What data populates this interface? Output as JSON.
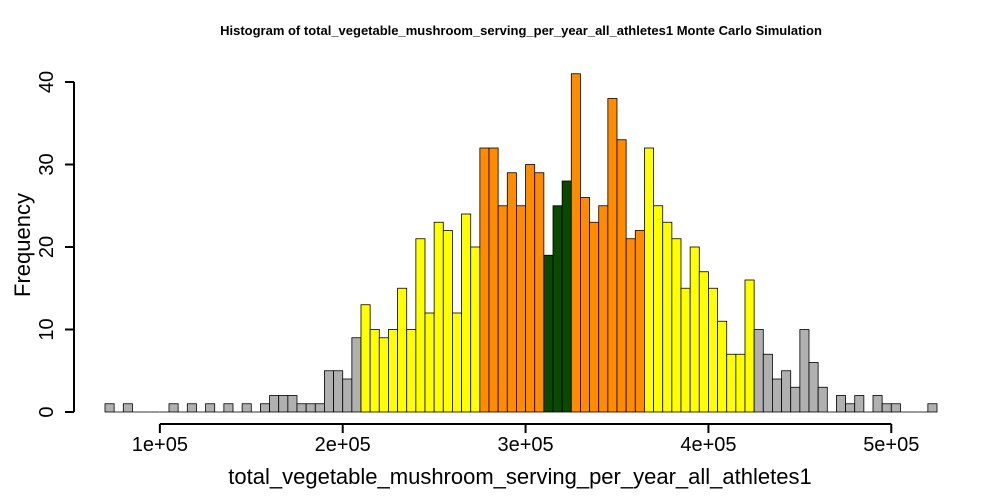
{
  "chart_data": {
    "type": "bar",
    "title": "Histogram of  total_vegetable_mushroom_serving_per_year_all_athletes1  Monte Carlo Simulation",
    "xlabel": "total_vegetable_mushroom_serving_per_year_all_athletes1",
    "ylabel": "Frequency",
    "xlim": [
      70000,
      525000
    ],
    "ylim": [
      0,
      40
    ],
    "bin_width": 5000,
    "x_ticks": [
      {
        "value": 100000,
        "label": "1e+05"
      },
      {
        "value": 200000,
        "label": "2e+05"
      },
      {
        "value": 300000,
        "label": "3e+05"
      },
      {
        "value": 400000,
        "label": "4e+05"
      },
      {
        "value": 500000,
        "label": "5e+05"
      }
    ],
    "y_ticks": [
      {
        "value": 0,
        "label": "0"
      },
      {
        "value": 10,
        "label": "10"
      },
      {
        "value": 20,
        "label": "20"
      },
      {
        "value": 30,
        "label": "30"
      },
      {
        "value": 40,
        "label": "40"
      }
    ],
    "colors": {
      "gray": "#b0b0b0",
      "yellow": "#ffff00",
      "orange": "#ff8c00",
      "green": "#0a4a00"
    },
    "bins": [
      {
        "x0": 70000,
        "x1": 75000,
        "count": 1,
        "color": "gray"
      },
      {
        "x0": 75000,
        "x1": 80000,
        "count": 0,
        "color": "gray"
      },
      {
        "x0": 80000,
        "x1": 85000,
        "count": 1,
        "color": "gray"
      },
      {
        "x0": 85000,
        "x1": 90000,
        "count": 0,
        "color": "gray"
      },
      {
        "x0": 90000,
        "x1": 95000,
        "count": 0,
        "color": "gray"
      },
      {
        "x0": 95000,
        "x1": 100000,
        "count": 0,
        "color": "gray"
      },
      {
        "x0": 100000,
        "x1": 105000,
        "count": 0,
        "color": "gray"
      },
      {
        "x0": 105000,
        "x1": 110000,
        "count": 1,
        "color": "gray"
      },
      {
        "x0": 110000,
        "x1": 115000,
        "count": 0,
        "color": "gray"
      },
      {
        "x0": 115000,
        "x1": 120000,
        "count": 1,
        "color": "gray"
      },
      {
        "x0": 120000,
        "x1": 125000,
        "count": 0,
        "color": "gray"
      },
      {
        "x0": 125000,
        "x1": 130000,
        "count": 1,
        "color": "gray"
      },
      {
        "x0": 130000,
        "x1": 135000,
        "count": 0,
        "color": "gray"
      },
      {
        "x0": 135000,
        "x1": 140000,
        "count": 1,
        "color": "gray"
      },
      {
        "x0": 140000,
        "x1": 145000,
        "count": 0,
        "color": "gray"
      },
      {
        "x0": 145000,
        "x1": 150000,
        "count": 1,
        "color": "gray"
      },
      {
        "x0": 150000,
        "x1": 155000,
        "count": 0,
        "color": "gray"
      },
      {
        "x0": 155000,
        "x1": 160000,
        "count": 1,
        "color": "gray"
      },
      {
        "x0": 160000,
        "x1": 165000,
        "count": 2,
        "color": "gray"
      },
      {
        "x0": 165000,
        "x1": 170000,
        "count": 2,
        "color": "gray"
      },
      {
        "x0": 170000,
        "x1": 175000,
        "count": 2,
        "color": "gray"
      },
      {
        "x0": 175000,
        "x1": 180000,
        "count": 1,
        "color": "gray"
      },
      {
        "x0": 180000,
        "x1": 185000,
        "count": 1,
        "color": "gray"
      },
      {
        "x0": 185000,
        "x1": 190000,
        "count": 1,
        "color": "gray"
      },
      {
        "x0": 190000,
        "x1": 195000,
        "count": 5,
        "color": "gray"
      },
      {
        "x0": 195000,
        "x1": 200000,
        "count": 5,
        "color": "gray"
      },
      {
        "x0": 200000,
        "x1": 205000,
        "count": 4,
        "color": "gray"
      },
      {
        "x0": 205000,
        "x1": 210000,
        "count": 9,
        "color": "gray"
      },
      {
        "x0": 210000,
        "x1": 215000,
        "count": 13,
        "color": "yellow"
      },
      {
        "x0": 215000,
        "x1": 220000,
        "count": 10,
        "color": "yellow"
      },
      {
        "x0": 220000,
        "x1": 225000,
        "count": 9,
        "color": "yellow"
      },
      {
        "x0": 225000,
        "x1": 230000,
        "count": 10,
        "color": "yellow"
      },
      {
        "x0": 230000,
        "x1": 235000,
        "count": 15,
        "color": "yellow"
      },
      {
        "x0": 235000,
        "x1": 240000,
        "count": 10,
        "color": "yellow"
      },
      {
        "x0": 240000,
        "x1": 245000,
        "count": 21,
        "color": "yellow"
      },
      {
        "x0": 245000,
        "x1": 250000,
        "count": 12,
        "color": "yellow"
      },
      {
        "x0": 250000,
        "x1": 255000,
        "count": 23,
        "color": "yellow"
      },
      {
        "x0": 255000,
        "x1": 260000,
        "count": 22,
        "color": "yellow"
      },
      {
        "x0": 260000,
        "x1": 265000,
        "count": 12,
        "color": "yellow"
      },
      {
        "x0": 265000,
        "x1": 270000,
        "count": 24,
        "color": "yellow"
      },
      {
        "x0": 270000,
        "x1": 275000,
        "count": 20,
        "color": "yellow"
      },
      {
        "x0": 275000,
        "x1": 280000,
        "count": 32,
        "color": "orange"
      },
      {
        "x0": 280000,
        "x1": 285000,
        "count": 32,
        "color": "orange"
      },
      {
        "x0": 285000,
        "x1": 290000,
        "count": 25,
        "color": "orange"
      },
      {
        "x0": 290000,
        "x1": 295000,
        "count": 29,
        "color": "orange"
      },
      {
        "x0": 295000,
        "x1": 300000,
        "count": 25,
        "color": "orange"
      },
      {
        "x0": 300000,
        "x1": 305000,
        "count": 30,
        "color": "orange"
      },
      {
        "x0": 305000,
        "x1": 310000,
        "count": 29,
        "color": "orange"
      },
      {
        "x0": 310000,
        "x1": 315000,
        "count": 19,
        "color": "green"
      },
      {
        "x0": 315000,
        "x1": 320000,
        "count": 25,
        "color": "green"
      },
      {
        "x0": 320000,
        "x1": 325000,
        "count": 28,
        "color": "green"
      },
      {
        "x0": 325000,
        "x1": 330000,
        "count": 41,
        "color": "orange"
      },
      {
        "x0": 330000,
        "x1": 335000,
        "count": 26,
        "color": "orange"
      },
      {
        "x0": 335000,
        "x1": 340000,
        "count": 23,
        "color": "orange"
      },
      {
        "x0": 340000,
        "x1": 345000,
        "count": 25,
        "color": "orange"
      },
      {
        "x0": 345000,
        "x1": 350000,
        "count": 38,
        "color": "orange"
      },
      {
        "x0": 350000,
        "x1": 355000,
        "count": 33,
        "color": "orange"
      },
      {
        "x0": 355000,
        "x1": 360000,
        "count": 21,
        "color": "orange"
      },
      {
        "x0": 360000,
        "x1": 365000,
        "count": 22,
        "color": "orange"
      },
      {
        "x0": 365000,
        "x1": 370000,
        "count": 32,
        "color": "yellow"
      },
      {
        "x0": 370000,
        "x1": 375000,
        "count": 25,
        "color": "yellow"
      },
      {
        "x0": 375000,
        "x1": 380000,
        "count": 23,
        "color": "yellow"
      },
      {
        "x0": 380000,
        "x1": 385000,
        "count": 21,
        "color": "yellow"
      },
      {
        "x0": 385000,
        "x1": 390000,
        "count": 15,
        "color": "yellow"
      },
      {
        "x0": 390000,
        "x1": 395000,
        "count": 20,
        "color": "yellow"
      },
      {
        "x0": 395000,
        "x1": 400000,
        "count": 17,
        "color": "yellow"
      },
      {
        "x0": 400000,
        "x1": 405000,
        "count": 15,
        "color": "yellow"
      },
      {
        "x0": 405000,
        "x1": 410000,
        "count": 11,
        "color": "yellow"
      },
      {
        "x0": 410000,
        "x1": 415000,
        "count": 7,
        "color": "yellow"
      },
      {
        "x0": 415000,
        "x1": 420000,
        "count": 7,
        "color": "yellow"
      },
      {
        "x0": 420000,
        "x1": 425000,
        "count": 16,
        "color": "yellow"
      },
      {
        "x0": 425000,
        "x1": 430000,
        "count": 10,
        "color": "gray"
      },
      {
        "x0": 430000,
        "x1": 435000,
        "count": 7,
        "color": "gray"
      },
      {
        "x0": 435000,
        "x1": 440000,
        "count": 4,
        "color": "gray"
      },
      {
        "x0": 440000,
        "x1": 445000,
        "count": 5,
        "color": "gray"
      },
      {
        "x0": 445000,
        "x1": 450000,
        "count": 3,
        "color": "gray"
      },
      {
        "x0": 450000,
        "x1": 455000,
        "count": 10,
        "color": "gray"
      },
      {
        "x0": 455000,
        "x1": 460000,
        "count": 6,
        "color": "gray"
      },
      {
        "x0": 460000,
        "x1": 465000,
        "count": 3,
        "color": "gray"
      },
      {
        "x0": 465000,
        "x1": 470000,
        "count": 0,
        "color": "gray"
      },
      {
        "x0": 470000,
        "x1": 475000,
        "count": 2,
        "color": "gray"
      },
      {
        "x0": 475000,
        "x1": 480000,
        "count": 1,
        "color": "gray"
      },
      {
        "x0": 480000,
        "x1": 485000,
        "count": 2,
        "color": "gray"
      },
      {
        "x0": 485000,
        "x1": 490000,
        "count": 0,
        "color": "gray"
      },
      {
        "x0": 490000,
        "x1": 495000,
        "count": 2,
        "color": "gray"
      },
      {
        "x0": 495000,
        "x1": 500000,
        "count": 1,
        "color": "gray"
      },
      {
        "x0": 500000,
        "x1": 505000,
        "count": 1,
        "color": "gray"
      },
      {
        "x0": 505000,
        "x1": 510000,
        "count": 0,
        "color": "gray"
      },
      {
        "x0": 510000,
        "x1": 515000,
        "count": 0,
        "color": "gray"
      },
      {
        "x0": 515000,
        "x1": 520000,
        "count": 0,
        "color": "gray"
      },
      {
        "x0": 520000,
        "x1": 525000,
        "count": 1,
        "color": "gray"
      }
    ]
  }
}
